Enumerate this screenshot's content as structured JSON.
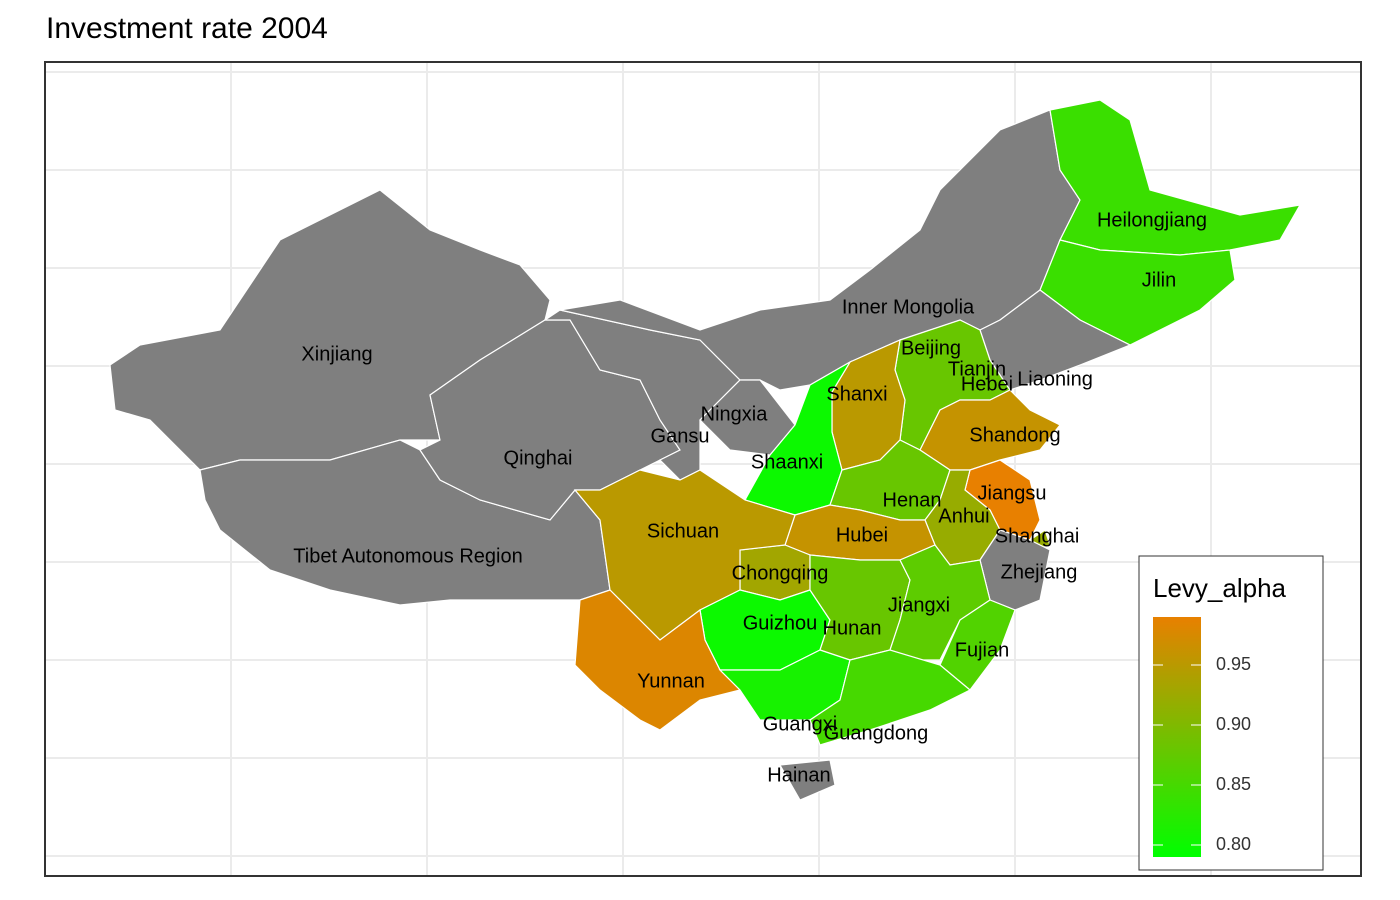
{
  "chart_data": {
    "type": "choropleth",
    "title": "Investment rate 2004",
    "legend_title": "Levy_alpha",
    "colorscale": [
      "#00ff00",
      "#e88000"
    ],
    "clim": [
      0.79,
      0.99
    ],
    "missing_color": "#7f7f7f",
    "ticks": [
      {
        "value": 0.8,
        "label": "0.80"
      },
      {
        "value": 0.85,
        "label": "0.85"
      },
      {
        "value": 0.9,
        "label": "0.90"
      },
      {
        "value": 0.95,
        "label": "0.95"
      }
    ],
    "regions": [
      {
        "name": "Xinjiang",
        "value": null
      },
      {
        "name": "Tibet Autonomous Region",
        "value": null
      },
      {
        "name": "Qinghai",
        "value": null
      },
      {
        "name": "Gansu",
        "value": null
      },
      {
        "name": "Inner Mongolia",
        "value": null
      },
      {
        "name": "Ningxia",
        "value": null
      },
      {
        "name": "Heilongjiang",
        "value": 0.84
      },
      {
        "name": "Jilin",
        "value": 0.84
      },
      {
        "name": "Liaoning",
        "value": null
      },
      {
        "name": "Beijing",
        "value": 0.88
      },
      {
        "name": "Tianjin",
        "value": 0.88
      },
      {
        "name": "Hebei",
        "value": 0.88
      },
      {
        "name": "Shanxi",
        "value": 0.95
      },
      {
        "name": "Shaanxi",
        "value": 0.8
      },
      {
        "name": "Shandong",
        "value": 0.96
      },
      {
        "name": "Henan",
        "value": 0.88
      },
      {
        "name": "Jiangsu",
        "value": 0.99
      },
      {
        "name": "Anhui",
        "value": 0.92
      },
      {
        "name": "Shanghai",
        "value": 0.92
      },
      {
        "name": "Zhejiang",
        "value": null
      },
      {
        "name": "Hubei",
        "value": 0.96
      },
      {
        "name": "Chongqing",
        "value": 0.93
      },
      {
        "name": "Sichuan",
        "value": 0.95
      },
      {
        "name": "Guizhou",
        "value": 0.8
      },
      {
        "name": "Yunnan",
        "value": 0.98
      },
      {
        "name": "Hunan",
        "value": 0.88
      },
      {
        "name": "Jiangxi",
        "value": 0.87
      },
      {
        "name": "Fujian",
        "value": 0.86
      },
      {
        "name": "Guangxi",
        "value": 0.81
      },
      {
        "name": "Guangdong",
        "value": 0.85
      },
      {
        "name": "Hainan",
        "value": null
      }
    ]
  }
}
